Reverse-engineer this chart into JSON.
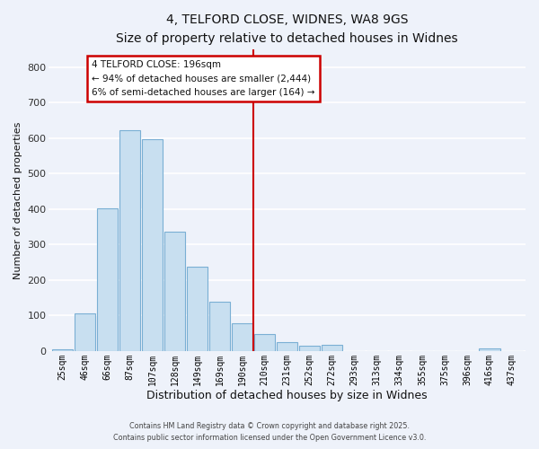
{
  "title": "4, TELFORD CLOSE, WIDNES, WA8 9GS",
  "subtitle": "Size of property relative to detached houses in Widnes",
  "xlabel": "Distribution of detached houses by size in Widnes",
  "ylabel": "Number of detached properties",
  "bar_labels": [
    "25sqm",
    "46sqm",
    "66sqm",
    "87sqm",
    "107sqm",
    "128sqm",
    "149sqm",
    "169sqm",
    "190sqm",
    "210sqm",
    "231sqm",
    "252sqm",
    "272sqm",
    "293sqm",
    "313sqm",
    "334sqm",
    "355sqm",
    "375sqm",
    "396sqm",
    "416sqm",
    "437sqm"
  ],
  "bar_values": [
    5,
    107,
    403,
    621,
    596,
    337,
    237,
    139,
    79,
    49,
    25,
    15,
    17,
    0,
    0,
    0,
    0,
    0,
    0,
    7,
    0
  ],
  "bar_color": "#c8dff0",
  "bar_edge_color": "#7aafd4",
  "vline_x": 8.5,
  "vline_color": "#cc0000",
  "annotation_title": "4 TELFORD CLOSE: 196sqm",
  "annotation_line1": "← 94% of detached houses are smaller (2,444)",
  "annotation_line2": "6% of semi-detached houses are larger (164) →",
  "annotation_box_color": "#ffffff",
  "annotation_box_edge_color": "#cc0000",
  "ylim": [
    0,
    850
  ],
  "yticks": [
    0,
    100,
    200,
    300,
    400,
    500,
    600,
    700,
    800
  ],
  "bg_color": "#eef2fa",
  "grid_color": "#ffffff",
  "footer1": "Contains HM Land Registry data © Crown copyright and database right 2025.",
  "footer2": "Contains public sector information licensed under the Open Government Licence v3.0."
}
